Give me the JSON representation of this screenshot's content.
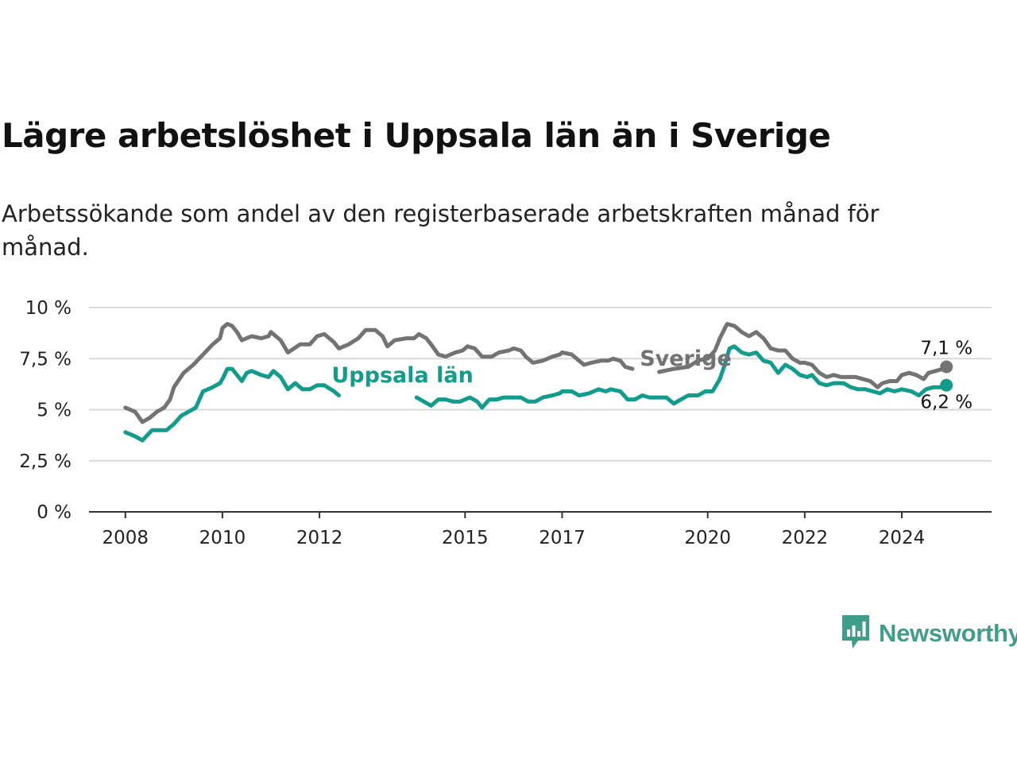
{
  "title": "Lägre arbetslöshet i Uppsala län än i Sverige",
  "subtitle": "Arbetssökande som andel av den registerbaserade arbetskraften månad för månad.",
  "brand": {
    "name": "Newsworthy",
    "icon": "newsworthy-bar-chart-icon",
    "color": "#3e9e8a"
  },
  "chart_data": {
    "type": "line",
    "ylim": [
      0,
      10
    ],
    "yticks": [
      0,
      2.5,
      5,
      7.5,
      10
    ],
    "ytick_labels": [
      "0 %",
      "2,5 %",
      "5 %",
      "7,5 %",
      "10 %"
    ],
    "xticks": [
      2008,
      2010,
      2012,
      2015,
      2017,
      2020,
      2022,
      2024
    ],
    "xtick_labels": [
      "2008",
      "2010",
      "2012",
      "2015",
      "2017",
      "2020",
      "2022",
      "2024"
    ],
    "xlim": [
      2007.25,
      2025.85
    ],
    "grid": true,
    "series": [
      {
        "name": "Sverige",
        "color": "#737373",
        "end_label": "7,1 %",
        "points": [
          [
            2008.0,
            5.1
          ],
          [
            2008.2,
            4.9
          ],
          [
            2008.35,
            4.4
          ],
          [
            2008.5,
            4.6
          ],
          [
            2008.65,
            4.9
          ],
          [
            2008.8,
            5.1
          ],
          [
            2008.92,
            5.5
          ],
          [
            2009.0,
            6.1
          ],
          [
            2009.2,
            6.8
          ],
          [
            2009.4,
            7.2
          ],
          [
            2009.6,
            7.7
          ],
          [
            2009.8,
            8.2
          ],
          [
            2009.95,
            8.5
          ],
          [
            2010.0,
            9.0
          ],
          [
            2010.1,
            9.2
          ],
          [
            2010.2,
            9.1
          ],
          [
            2010.3,
            8.8
          ],
          [
            2010.4,
            8.4
          ],
          [
            2010.6,
            8.6
          ],
          [
            2010.8,
            8.5
          ],
          [
            2010.95,
            8.6
          ],
          [
            2011.0,
            8.8
          ],
          [
            2011.2,
            8.4
          ],
          [
            2011.35,
            7.8
          ],
          [
            2011.6,
            8.2
          ],
          [
            2011.8,
            8.2
          ],
          [
            2011.95,
            8.6
          ],
          [
            2012.1,
            8.7
          ],
          [
            2012.3,
            8.3
          ],
          [
            2012.4,
            8.0
          ],
          [
            2012.6,
            8.2
          ],
          [
            2012.8,
            8.5
          ],
          [
            2012.95,
            8.9
          ],
          [
            2013.15,
            8.9
          ],
          [
            2013.3,
            8.6
          ],
          [
            2013.4,
            8.1
          ],
          [
            2013.55,
            8.4
          ],
          [
            2013.8,
            8.5
          ],
          [
            2013.95,
            8.5
          ],
          [
            2014.05,
            8.7
          ],
          [
            2014.2,
            8.5
          ],
          [
            2014.3,
            8.2
          ],
          [
            2014.45,
            7.7
          ],
          [
            2014.6,
            7.6
          ],
          [
            2014.8,
            7.8
          ],
          [
            2014.95,
            7.9
          ],
          [
            2015.05,
            8.1
          ],
          [
            2015.2,
            8.0
          ],
          [
            2015.35,
            7.6
          ],
          [
            2015.55,
            7.6
          ],
          [
            2015.7,
            7.8
          ],
          [
            2015.9,
            7.9
          ],
          [
            2016.0,
            8.0
          ],
          [
            2016.15,
            7.9
          ],
          [
            2016.25,
            7.6
          ],
          [
            2016.4,
            7.3
          ],
          [
            2016.6,
            7.4
          ],
          [
            2016.8,
            7.6
          ],
          [
            2016.95,
            7.7
          ],
          [
            2017.0,
            7.8
          ],
          [
            2017.2,
            7.7
          ],
          [
            2017.3,
            7.5
          ],
          [
            2017.45,
            7.2
          ],
          [
            2017.6,
            7.3
          ],
          [
            2017.8,
            7.4
          ],
          [
            2017.95,
            7.4
          ],
          [
            2018.05,
            7.5
          ],
          [
            2018.2,
            7.4
          ],
          [
            2018.3,
            7.1
          ],
          [
            2018.45,
            7.0
          ],
          [
            2019.0,
            6.85
          ],
          [
            2019.3,
            7.0
          ],
          [
            2019.6,
            7.1
          ],
          [
            2019.8,
            7.4
          ],
          [
            2019.95,
            7.5
          ],
          [
            2020.0,
            7.5
          ],
          [
            2020.15,
            7.9
          ],
          [
            2020.25,
            8.5
          ],
          [
            2020.4,
            9.2
          ],
          [
            2020.55,
            9.1
          ],
          [
            2020.7,
            8.8
          ],
          [
            2020.85,
            8.6
          ],
          [
            2021.0,
            8.8
          ],
          [
            2021.15,
            8.5
          ],
          [
            2021.3,
            8.0
          ],
          [
            2021.45,
            7.9
          ],
          [
            2021.6,
            7.9
          ],
          [
            2021.75,
            7.5
          ],
          [
            2021.9,
            7.3
          ],
          [
            2022.0,
            7.3
          ],
          [
            2022.15,
            7.2
          ],
          [
            2022.3,
            6.8
          ],
          [
            2022.45,
            6.6
          ],
          [
            2022.6,
            6.7
          ],
          [
            2022.75,
            6.6
          ],
          [
            2022.95,
            6.6
          ],
          [
            2023.05,
            6.6
          ],
          [
            2023.2,
            6.5
          ],
          [
            2023.35,
            6.4
          ],
          [
            2023.5,
            6.1
          ],
          [
            2023.6,
            6.3
          ],
          [
            2023.75,
            6.4
          ],
          [
            2023.9,
            6.4
          ],
          [
            2024.0,
            6.7
          ],
          [
            2024.15,
            6.8
          ],
          [
            2024.3,
            6.7
          ],
          [
            2024.45,
            6.5
          ],
          [
            2024.55,
            6.8
          ],
          [
            2024.7,
            6.9
          ],
          [
            2024.85,
            7.0
          ],
          [
            2024.92,
            7.1
          ]
        ]
      },
      {
        "name": "Uppsala län",
        "color": "#119c8c",
        "end_label": "6,2 %",
        "points": [
          [
            2008.0,
            3.9
          ],
          [
            2008.2,
            3.7
          ],
          [
            2008.35,
            3.5
          ],
          [
            2008.55,
            4.0
          ],
          [
            2008.7,
            4.0
          ],
          [
            2008.85,
            4.0
          ],
          [
            2009.0,
            4.3
          ],
          [
            2009.15,
            4.7
          ],
          [
            2009.3,
            4.9
          ],
          [
            2009.45,
            5.1
          ],
          [
            2009.6,
            5.9
          ],
          [
            2009.8,
            6.1
          ],
          [
            2009.95,
            6.3
          ],
          [
            2010.0,
            6.5
          ],
          [
            2010.1,
            7.0
          ],
          [
            2010.2,
            7.0
          ],
          [
            2010.3,
            6.7
          ],
          [
            2010.4,
            6.4
          ],
          [
            2010.5,
            6.8
          ],
          [
            2010.6,
            6.9
          ],
          [
            2010.8,
            6.7
          ],
          [
            2010.95,
            6.6
          ],
          [
            2011.05,
            6.9
          ],
          [
            2011.2,
            6.6
          ],
          [
            2011.35,
            6.0
          ],
          [
            2011.5,
            6.3
          ],
          [
            2011.65,
            6.0
          ],
          [
            2011.8,
            6.0
          ],
          [
            2011.95,
            6.2
          ],
          [
            2012.1,
            6.2
          ],
          [
            2012.3,
            5.9
          ],
          [
            2012.4,
            5.7
          ],
          [
            2014.0,
            5.6
          ],
          [
            2014.15,
            5.4
          ],
          [
            2014.3,
            5.2
          ],
          [
            2014.45,
            5.5
          ],
          [
            2014.6,
            5.5
          ],
          [
            2014.75,
            5.4
          ],
          [
            2014.9,
            5.4
          ],
          [
            2015.1,
            5.6
          ],
          [
            2015.25,
            5.4
          ],
          [
            2015.35,
            5.1
          ],
          [
            2015.5,
            5.5
          ],
          [
            2015.65,
            5.5
          ],
          [
            2015.8,
            5.6
          ],
          [
            2016.0,
            5.6
          ],
          [
            2016.15,
            5.6
          ],
          [
            2016.3,
            5.4
          ],
          [
            2016.45,
            5.4
          ],
          [
            2016.6,
            5.6
          ],
          [
            2016.8,
            5.7
          ],
          [
            2016.95,
            5.8
          ],
          [
            2017.0,
            5.9
          ],
          [
            2017.2,
            5.9
          ],
          [
            2017.35,
            5.7
          ],
          [
            2017.55,
            5.8
          ],
          [
            2017.75,
            6.0
          ],
          [
            2017.9,
            5.9
          ],
          [
            2018.0,
            6.0
          ],
          [
            2018.2,
            5.9
          ],
          [
            2018.35,
            5.5
          ],
          [
            2018.5,
            5.5
          ],
          [
            2018.65,
            5.7
          ],
          [
            2018.8,
            5.6
          ],
          [
            2019.0,
            5.6
          ],
          [
            2019.15,
            5.6
          ],
          [
            2019.3,
            5.3
          ],
          [
            2019.45,
            5.5
          ],
          [
            2019.6,
            5.7
          ],
          [
            2019.8,
            5.7
          ],
          [
            2019.95,
            5.9
          ],
          [
            2020.1,
            5.9
          ],
          [
            2020.25,
            6.5
          ],
          [
            2020.35,
            7.2
          ],
          [
            2020.45,
            8.0
          ],
          [
            2020.55,
            8.1
          ],
          [
            2020.7,
            7.8
          ],
          [
            2020.85,
            7.7
          ],
          [
            2021.0,
            7.8
          ],
          [
            2021.15,
            7.4
          ],
          [
            2021.3,
            7.3
          ],
          [
            2021.45,
            6.8
          ],
          [
            2021.6,
            7.2
          ],
          [
            2021.75,
            7.0
          ],
          [
            2021.9,
            6.7
          ],
          [
            2022.05,
            6.6
          ],
          [
            2022.15,
            6.7
          ],
          [
            2022.3,
            6.3
          ],
          [
            2022.45,
            6.2
          ],
          [
            2022.6,
            6.3
          ],
          [
            2022.8,
            6.3
          ],
          [
            2022.95,
            6.1
          ],
          [
            2023.1,
            6.0
          ],
          [
            2023.25,
            6.0
          ],
          [
            2023.4,
            5.9
          ],
          [
            2023.55,
            5.8
          ],
          [
            2023.7,
            6.0
          ],
          [
            2023.85,
            5.9
          ],
          [
            2024.0,
            6.0
          ],
          [
            2024.2,
            5.9
          ],
          [
            2024.35,
            5.7
          ],
          [
            2024.5,
            6.0
          ],
          [
            2024.65,
            6.1
          ],
          [
            2024.8,
            6.1
          ],
          [
            2024.92,
            6.2
          ]
        ]
      }
    ],
    "annotations": [
      {
        "text": "Uppsala län",
        "series": "Uppsala län",
        "x": 2012.25,
        "y": 6.35
      },
      {
        "text": "Sverige",
        "series": "Sverige",
        "x": 2018.6,
        "y": 7.15
      }
    ]
  }
}
